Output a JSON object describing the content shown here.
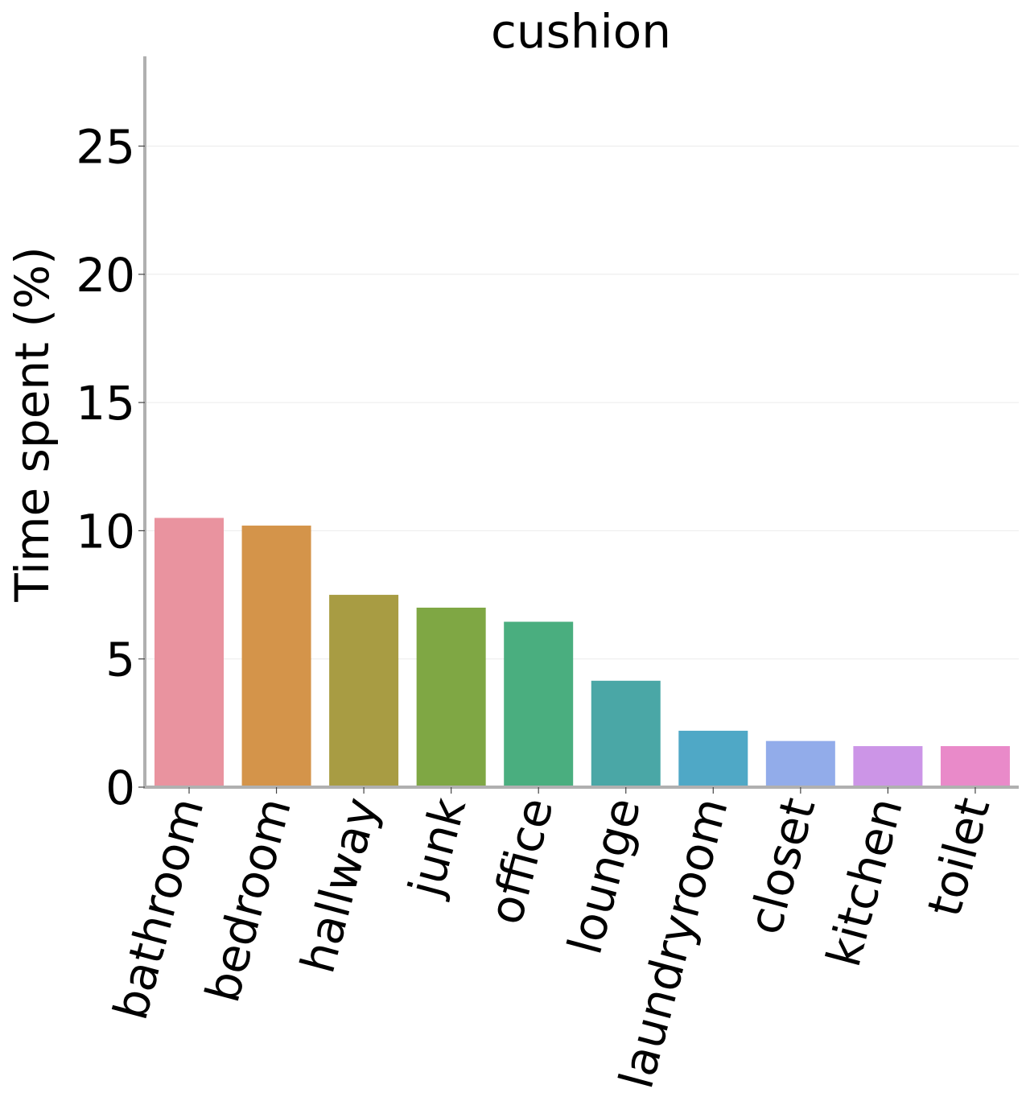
{
  "chart_data": {
    "type": "bar",
    "title": "cushion",
    "xlabel": "",
    "ylabel": "Time spent (%)",
    "categories": [
      "bathroom",
      "bedroom",
      "hallway",
      "junk",
      "office",
      "lounge",
      "laundryroom",
      "closet",
      "kitchen",
      "toilet"
    ],
    "values": [
      10.5,
      10.2,
      7.5,
      7.0,
      6.45,
      4.15,
      2.2,
      1.8,
      1.6,
      1.6
    ],
    "colors": [
      "#e9939f",
      "#d4944a",
      "#a89c43",
      "#7fa744",
      "#4aae7f",
      "#4aa7a6",
      "#4fa8c6",
      "#92acea",
      "#cc95e7",
      "#e98ac9"
    ],
    "yticks": [
      0,
      5,
      10,
      15,
      20,
      25
    ],
    "ylim": [
      0,
      28.5
    ],
    "grid": "y",
    "legend": "none"
  }
}
